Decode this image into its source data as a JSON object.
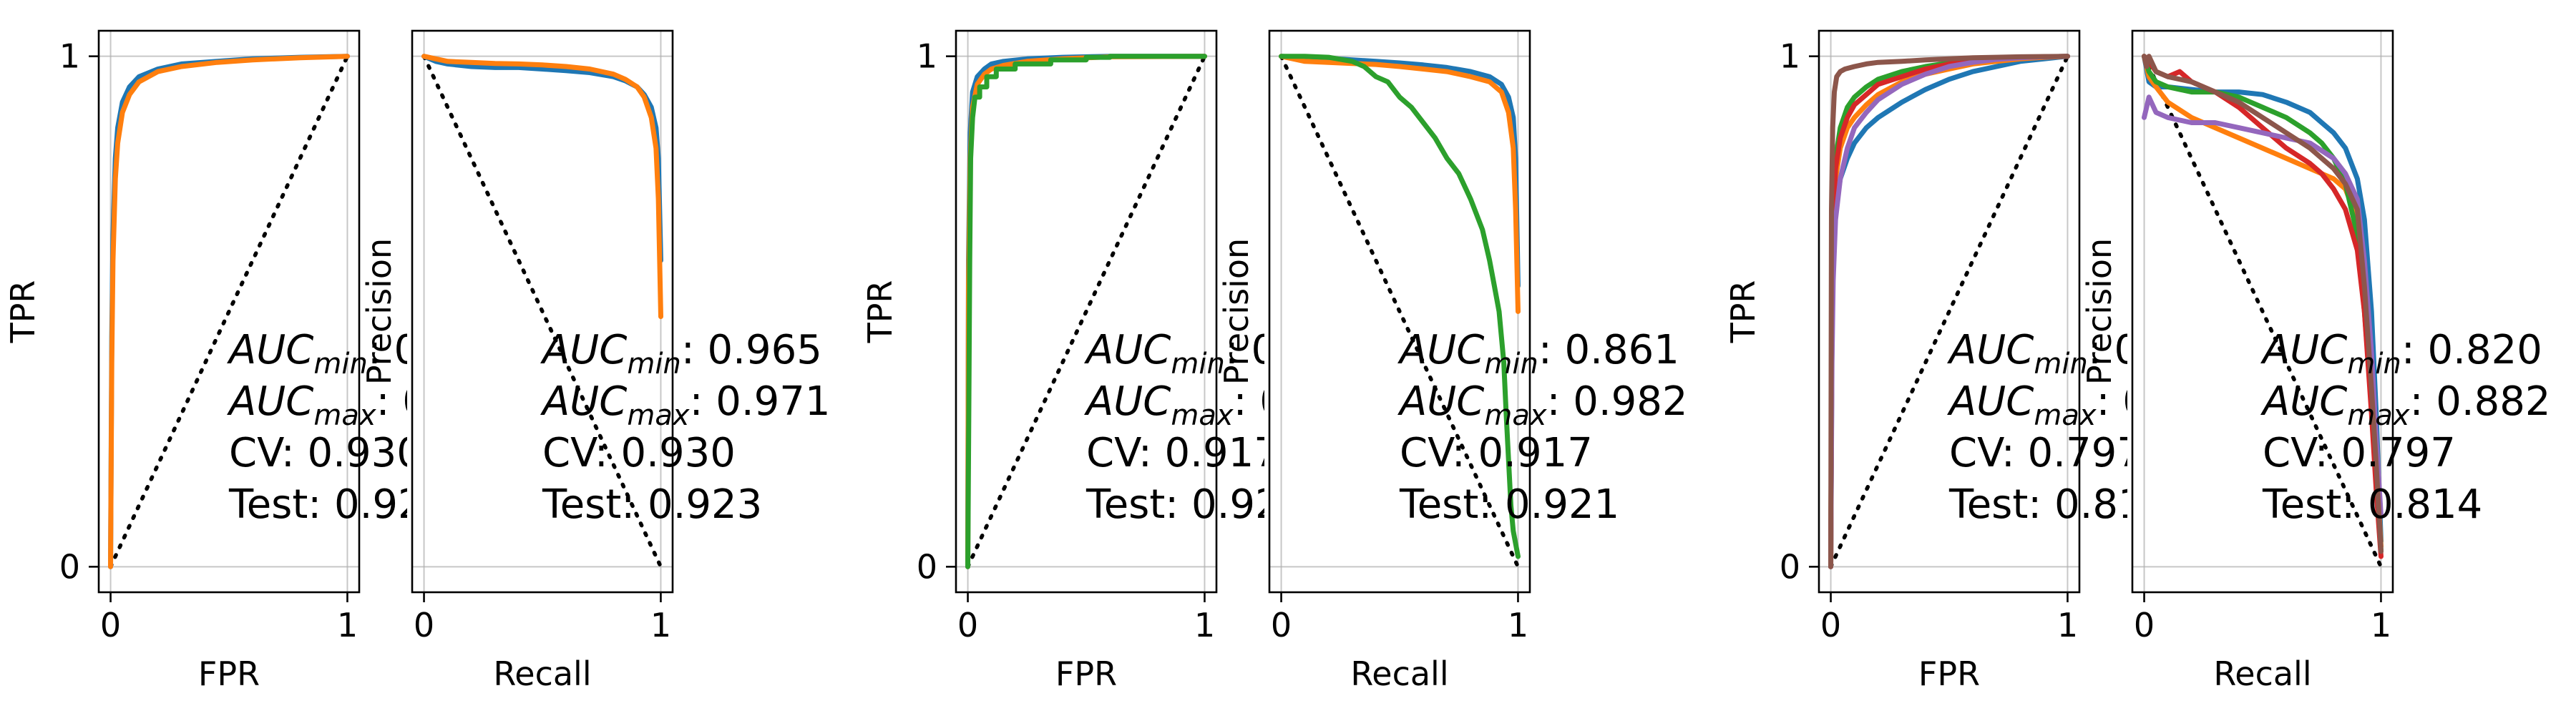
{
  "chart_data": [
    {
      "type": "line",
      "panel": "roc",
      "xlabel": "FPR",
      "ylabel": "TPR",
      "xlim": [
        -0.05,
        1.05
      ],
      "ylim": [
        -0.05,
        1.05
      ],
      "xticks": [
        0,
        1
      ],
      "yticks": [
        0,
        1
      ],
      "grid": true,
      "diagonal": "rising",
      "series": [
        {
          "color": "#1f77b4",
          "x": [
            0,
            0.005,
            0.01,
            0.02,
            0.03,
            0.05,
            0.08,
            0.12,
            0.2,
            0.3,
            0.45,
            0.6,
            0.8,
            1
          ],
          "y": [
            0,
            0.45,
            0.65,
            0.8,
            0.86,
            0.91,
            0.94,
            0.96,
            0.975,
            0.985,
            0.99,
            0.995,
            0.998,
            1
          ]
        },
        {
          "color": "#ff7f0e",
          "x": [
            0,
            0.005,
            0.01,
            0.02,
            0.03,
            0.05,
            0.08,
            0.12,
            0.2,
            0.3,
            0.45,
            0.6,
            0.8,
            1
          ],
          "y": [
            0,
            0.4,
            0.6,
            0.76,
            0.83,
            0.89,
            0.925,
            0.95,
            0.97,
            0.98,
            0.988,
            0.993,
            0.997,
            1
          ]
        }
      ]
    },
    {
      "type": "line",
      "panel": "pr",
      "xlabel": "Recall",
      "ylabel": "Precision",
      "xlim": [
        -0.05,
        1.05
      ],
      "ylim": [
        -0.05,
        1.05
      ],
      "xticks": [
        0,
        1
      ],
      "yticks": [],
      "grid": true,
      "diagonal": "falling",
      "annotation": {
        "auc_min": "0.965",
        "auc_max": "0.971",
        "cv": "CV: 0.930",
        "test": "Test: 0.923"
      },
      "series": [
        {
          "color": "#1f77b4",
          "x": [
            0,
            0.05,
            0.1,
            0.2,
            0.3,
            0.4,
            0.5,
            0.6,
            0.7,
            0.8,
            0.85,
            0.9,
            0.93,
            0.96,
            0.98,
            0.99,
            1
          ],
          "y": [
            1,
            0.99,
            0.985,
            0.98,
            0.978,
            0.978,
            0.975,
            0.972,
            0.968,
            0.96,
            0.952,
            0.94,
            0.925,
            0.9,
            0.86,
            0.8,
            0.6
          ]
        },
        {
          "color": "#ff7f0e",
          "x": [
            0,
            0.05,
            0.1,
            0.2,
            0.3,
            0.4,
            0.5,
            0.6,
            0.7,
            0.8,
            0.85,
            0.9,
            0.93,
            0.96,
            0.98,
            0.99,
            1
          ],
          "y": [
            1,
            0.995,
            0.99,
            0.988,
            0.986,
            0.985,
            0.983,
            0.98,
            0.975,
            0.965,
            0.955,
            0.94,
            0.92,
            0.88,
            0.82,
            0.72,
            0.49
          ]
        }
      ]
    },
    {
      "type": "line",
      "panel": "roc",
      "xlabel": "FPR",
      "ylabel": "TPR",
      "xlim": [
        -0.05,
        1.05
      ],
      "ylim": [
        -0.05,
        1.05
      ],
      "xticks": [
        0,
        1
      ],
      "yticks": [
        0,
        1
      ],
      "grid": true,
      "diagonal": "rising",
      "series": [
        {
          "color": "#1f77b4",
          "x": [
            0,
            0.003,
            0.01,
            0.02,
            0.04,
            0.07,
            0.1,
            0.15,
            0.25,
            0.4,
            0.6,
            1
          ],
          "y": [
            0,
            0.6,
            0.85,
            0.93,
            0.96,
            0.975,
            0.985,
            0.99,
            0.995,
            0.998,
            1,
            1
          ]
        },
        {
          "color": "#ff7f0e",
          "x": [
            0,
            0.003,
            0.01,
            0.02,
            0.04,
            0.07,
            0.1,
            0.15,
            0.25,
            0.4,
            0.6,
            1
          ],
          "y": [
            0,
            0.55,
            0.8,
            0.9,
            0.945,
            0.965,
            0.975,
            0.982,
            0.99,
            0.995,
            0.999,
            1
          ]
        },
        {
          "color": "#2ca02c",
          "x": [
            0,
            0.004,
            0.008,
            0.012,
            0.02,
            0.03,
            0.05,
            0.05,
            0.08,
            0.08,
            0.12,
            0.12,
            0.2,
            0.2,
            0.35,
            0.35,
            0.5,
            0.5,
            0.6,
            0.6,
            1
          ],
          "y": [
            0,
            0.3,
            0.6,
            0.8,
            0.88,
            0.92,
            0.92,
            0.94,
            0.94,
            0.96,
            0.96,
            0.975,
            0.975,
            0.985,
            0.985,
            0.993,
            0.993,
            0.998,
            0.998,
            1,
            1
          ]
        }
      ]
    },
    {
      "type": "line",
      "panel": "pr",
      "xlabel": "Recall",
      "ylabel": "Precision",
      "xlim": [
        -0.05,
        1.05
      ],
      "ylim": [
        -0.05,
        1.05
      ],
      "xticks": [
        0,
        1
      ],
      "yticks": [],
      "grid": true,
      "diagonal": "falling",
      "annotation": {
        "auc_min": "0.861",
        "auc_max": "0.982",
        "cv": "CV: 0.917",
        "test": "Test: 0.921"
      },
      "series": [
        {
          "color": "#1f77b4",
          "x": [
            0,
            0.1,
            0.2,
            0.3,
            0.4,
            0.5,
            0.6,
            0.7,
            0.8,
            0.88,
            0.93,
            0.96,
            0.98,
            0.99,
            1
          ],
          "y": [
            1,
            0.998,
            0.996,
            0.993,
            0.99,
            0.987,
            0.983,
            0.978,
            0.97,
            0.96,
            0.945,
            0.92,
            0.88,
            0.8,
            0.55
          ]
        },
        {
          "color": "#ff7f0e",
          "x": [
            0,
            0.1,
            0.2,
            0.3,
            0.4,
            0.5,
            0.6,
            0.7,
            0.8,
            0.88,
            0.93,
            0.96,
            0.98,
            0.99,
            1
          ],
          "y": [
            1,
            0.99,
            0.988,
            0.986,
            0.984,
            0.98,
            0.975,
            0.97,
            0.96,
            0.95,
            0.93,
            0.89,
            0.82,
            0.7,
            0.5
          ]
        },
        {
          "color": "#2ca02c",
          "x": [
            0,
            0.1,
            0.2,
            0.3,
            0.35,
            0.4,
            0.45,
            0.5,
            0.55,
            0.6,
            0.65,
            0.7,
            0.75,
            0.8,
            0.85,
            0.88,
            0.9,
            0.92,
            0.93,
            0.94,
            0.95,
            0.97,
            0.98,
            1
          ],
          "y": [
            1,
            1,
            0.998,
            0.99,
            0.98,
            0.96,
            0.95,
            0.92,
            0.9,
            0.87,
            0.84,
            0.8,
            0.77,
            0.72,
            0.66,
            0.6,
            0.55,
            0.5,
            0.45,
            0.4,
            0.3,
            0.12,
            0.07,
            0.02
          ]
        }
      ]
    },
    {
      "type": "line",
      "panel": "roc",
      "xlabel": "FPR",
      "ylabel": "TPR",
      "xlim": [
        -0.05,
        1.05
      ],
      "ylim": [
        -0.05,
        1.05
      ],
      "xticks": [
        0,
        1
      ],
      "yticks": [
        0,
        1
      ],
      "grid": true,
      "diagonal": "rising",
      "series": [
        {
          "color": "#1f77b4",
          "x": [
            0,
            0.005,
            0.01,
            0.02,
            0.04,
            0.07,
            0.1,
            0.15,
            0.2,
            0.3,
            0.4,
            0.5,
            0.6,
            0.7,
            0.8,
            0.9,
            1
          ],
          "y": [
            0,
            0.45,
            0.6,
            0.7,
            0.76,
            0.8,
            0.83,
            0.86,
            0.88,
            0.91,
            0.935,
            0.955,
            0.97,
            0.98,
            0.99,
            0.995,
            1
          ]
        },
        {
          "color": "#ff7f0e",
          "x": [
            0,
            0.005,
            0.01,
            0.02,
            0.04,
            0.07,
            0.1,
            0.15,
            0.2,
            0.3,
            0.4,
            0.5,
            0.6,
            0.7,
            0.8,
            0.9,
            1
          ],
          "y": [
            0,
            0.5,
            0.66,
            0.76,
            0.82,
            0.86,
            0.88,
            0.905,
            0.925,
            0.95,
            0.965,
            0.975,
            0.985,
            0.99,
            0.995,
            0.998,
            1
          ]
        },
        {
          "color": "#2ca02c",
          "x": [
            0,
            0.005,
            0.01,
            0.02,
            0.04,
            0.07,
            0.1,
            0.15,
            0.2,
            0.3,
            0.4,
            0.5,
            0.6,
            0.7,
            0.8,
            0.9,
            1
          ],
          "y": [
            0,
            0.55,
            0.7,
            0.8,
            0.86,
            0.9,
            0.92,
            0.94,
            0.955,
            0.97,
            0.98,
            0.987,
            0.992,
            0.995,
            0.998,
            0.999,
            1
          ]
        },
        {
          "color": "#d62728",
          "x": [
            0,
            0.005,
            0.01,
            0.02,
            0.04,
            0.07,
            0.1,
            0.15,
            0.2,
            0.3,
            0.4,
            0.5,
            0.6,
            0.7,
            0.8,
            0.9,
            1
          ],
          "y": [
            0,
            0.52,
            0.68,
            0.78,
            0.84,
            0.88,
            0.905,
            0.925,
            0.945,
            0.96,
            0.975,
            0.985,
            0.99,
            0.995,
            0.998,
            0.999,
            1
          ]
        },
        {
          "color": "#9467bd",
          "x": [
            0,
            0.005,
            0.01,
            0.02,
            0.04,
            0.07,
            0.1,
            0.15,
            0.2,
            0.3,
            0.4,
            0.5,
            0.6,
            0.7,
            0.8,
            0.9,
            1
          ],
          "y": [
            0,
            0.4,
            0.56,
            0.68,
            0.76,
            0.82,
            0.86,
            0.89,
            0.915,
            0.945,
            0.965,
            0.98,
            0.988,
            0.994,
            0.997,
            0.999,
            1
          ]
        },
        {
          "color": "#8c564b",
          "x": [
            0,
            0.003,
            0.008,
            0.015,
            0.025,
            0.04,
            0.06,
            0.1,
            0.15,
            0.2,
            0.3,
            0.4,
            0.5,
            0.6,
            0.8,
            1
          ],
          "y": [
            0,
            0.7,
            0.86,
            0.93,
            0.96,
            0.97,
            0.975,
            0.98,
            0.985,
            0.988,
            0.99,
            0.993,
            0.995,
            0.997,
            0.999,
            1
          ]
        }
      ]
    },
    {
      "type": "line",
      "panel": "pr",
      "xlabel": "Recall",
      "ylabel": "Precision",
      "xlim": [
        -0.05,
        1.05
      ],
      "ylim": [
        -0.05,
        1.05
      ],
      "xticks": [
        0,
        1
      ],
      "yticks": [],
      "grid": true,
      "diagonal": "falling",
      "annotation": {
        "auc_min": "0.820",
        "auc_max": "0.882",
        "cv": "CV: 0.797",
        "test": "Test: 0.814"
      },
      "series": [
        {
          "color": "#1f77b4",
          "x": [
            0,
            0.02,
            0.05,
            0.1,
            0.2,
            0.3,
            0.4,
            0.5,
            0.6,
            0.7,
            0.75,
            0.8,
            0.85,
            0.9,
            0.93,
            0.96,
            0.98,
            1
          ],
          "y": [
            1,
            0.95,
            0.94,
            0.94,
            0.935,
            0.93,
            0.93,
            0.925,
            0.91,
            0.89,
            0.87,
            0.85,
            0.82,
            0.76,
            0.68,
            0.5,
            0.3,
            0.05
          ]
        },
        {
          "color": "#ff7f0e",
          "x": [
            0,
            0.02,
            0.05,
            0.1,
            0.2,
            0.3,
            0.4,
            0.5,
            0.6,
            0.7,
            0.75,
            0.8,
            0.85,
            0.9,
            0.93,
            0.96,
            0.98,
            1
          ],
          "y": [
            1,
            0.96,
            0.94,
            0.91,
            0.88,
            0.86,
            0.84,
            0.82,
            0.8,
            0.78,
            0.77,
            0.76,
            0.74,
            0.68,
            0.58,
            0.38,
            0.2,
            0.04
          ]
        },
        {
          "color": "#2ca02c",
          "x": [
            0,
            0.02,
            0.05,
            0.1,
            0.2,
            0.3,
            0.4,
            0.5,
            0.6,
            0.7,
            0.75,
            0.8,
            0.85,
            0.9,
            0.93,
            0.96,
            0.98,
            1
          ],
          "y": [
            1,
            0.97,
            0.95,
            0.94,
            0.93,
            0.93,
            0.92,
            0.9,
            0.88,
            0.85,
            0.83,
            0.8,
            0.75,
            0.65,
            0.5,
            0.32,
            0.18,
            0.03
          ]
        },
        {
          "color": "#d62728",
          "x": [
            0,
            0.02,
            0.05,
            0.1,
            0.15,
            0.2,
            0.3,
            0.4,
            0.5,
            0.6,
            0.7,
            0.75,
            0.8,
            0.85,
            0.9,
            0.93,
            0.96,
            0.98,
            1
          ],
          "y": [
            1,
            0.99,
            0.97,
            0.96,
            0.97,
            0.95,
            0.93,
            0.9,
            0.86,
            0.82,
            0.79,
            0.77,
            0.74,
            0.7,
            0.62,
            0.5,
            0.3,
            0.15,
            0.02
          ]
        },
        {
          "color": "#9467bd",
          "x": [
            0,
            0.01,
            0.02,
            0.05,
            0.1,
            0.2,
            0.3,
            0.4,
            0.5,
            0.6,
            0.7,
            0.8,
            0.85,
            0.9,
            0.93,
            0.96,
            0.98,
            1
          ],
          "y": [
            0.88,
            0.9,
            0.92,
            0.89,
            0.88,
            0.87,
            0.87,
            0.86,
            0.85,
            0.84,
            0.83,
            0.8,
            0.77,
            0.72,
            0.6,
            0.42,
            0.25,
            0.1
          ]
        },
        {
          "color": "#8c564b",
          "x": [
            0,
            0.01,
            0.02,
            0.05,
            0.1,
            0.2,
            0.3,
            0.4,
            0.5,
            0.6,
            0.7,
            0.75,
            0.8,
            0.85,
            0.88,
            0.9,
            0.93,
            0.96,
            0.98,
            1
          ],
          "y": [
            1,
            0.98,
            1,
            0.97,
            0.96,
            0.95,
            0.93,
            0.91,
            0.88,
            0.85,
            0.82,
            0.8,
            0.78,
            0.75,
            0.72,
            0.7,
            0.55,
            0.35,
            0.2,
            0.03
          ]
        }
      ]
    }
  ],
  "annotation_labels": {
    "auc": "AUC",
    "min": "min",
    "max": "max",
    "sep": ": "
  }
}
